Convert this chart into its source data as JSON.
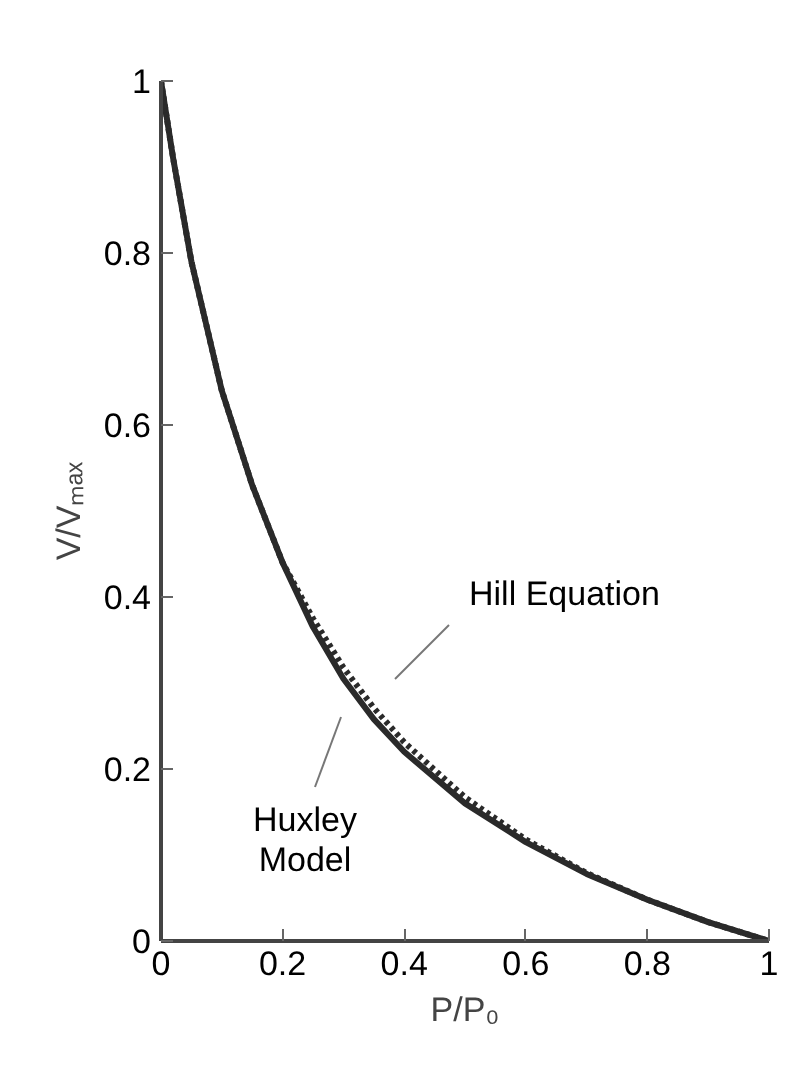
{
  "chart_data": {
    "type": "line",
    "xlabel": "P/P₀",
    "ylabel": "V/Vₘₐₓ",
    "xlim": [
      0,
      1
    ],
    "ylim": [
      0,
      1
    ],
    "xticks": [
      0,
      0.2,
      0.4,
      0.6,
      0.8,
      1
    ],
    "yticks": [
      0,
      0.2,
      0.4,
      0.6,
      0.8,
      1
    ],
    "grid": false,
    "x": [
      0,
      0.02,
      0.05,
      0.1,
      0.15,
      0.2,
      0.25,
      0.3,
      0.35,
      0.4,
      0.5,
      0.6,
      0.7,
      0.8,
      0.9,
      1.0
    ],
    "series": [
      {
        "color": "#2a2a2a",
        "line_style": "solid",
        "values": [
          1,
          0.91,
          0.79,
          0.64,
          0.53,
          0.44,
          0.365,
          0.305,
          0.258,
          0.22,
          0.16,
          0.115,
          0.078,
          0.048,
          0.022,
          0
        ]
      },
      {
        "color": "#2a2a2a",
        "line_style": "dotted",
        "values": [
          1,
          0.91,
          0.79,
          0.64,
          0.53,
          0.44,
          0.375,
          0.318,
          0.271,
          0.231,
          0.167,
          0.118,
          0.079,
          0.048,
          0.022,
          0
        ]
      }
    ],
    "annotations": [
      "Hill Equation",
      "Huxley\nModel"
    ]
  }
}
